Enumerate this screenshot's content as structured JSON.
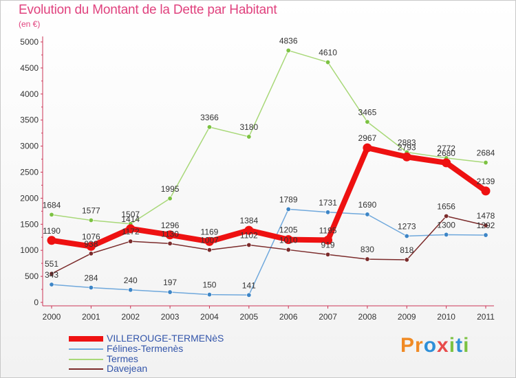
{
  "header": {
    "title": "Evolution du Montant de la Dette par Habitant",
    "subtitle": "(en €)"
  },
  "brand": {
    "logo_text": "Proxiti",
    "letters": [
      {
        "char": "P",
        "color": "#f08a24"
      },
      {
        "char": "r",
        "color": "#f08a24"
      },
      {
        "char": "o",
        "color": "#2e8fd8"
      },
      {
        "char": "x",
        "color": "#e84b4b"
      },
      {
        "char": "i",
        "color": "#7cc242"
      },
      {
        "char": "t",
        "color": "#2e8fd8"
      },
      {
        "char": "i",
        "color": "#7cc242"
      }
    ]
  },
  "chart_data": {
    "type": "line",
    "title": "Evolution du Montant de la Dette par Habitant",
    "subtitle": "(en €)",
    "x": [
      "2000",
      "2001",
      "2002",
      "2003",
      "2004",
      "2005",
      "2006",
      "2007",
      "2008",
      "2009",
      "2010",
      "2011"
    ],
    "ylim": [
      0,
      5000
    ],
    "yticks": [
      0,
      500,
      1000,
      1500,
      2000,
      2500,
      3000,
      3500,
      4000,
      4500,
      5000
    ],
    "grid": false,
    "legend_position": "bottom-left",
    "series": [
      {
        "name": "VILLEROUGE-TERMENèS",
        "color": "#ee1111",
        "marker": "#ee1111",
        "values": [
          1190,
          1076,
          1414,
          1296,
          1169,
          1384,
          1205,
          1195,
          2967,
          2793,
          2680,
          2139
        ]
      },
      {
        "name": "Félines-Termenès",
        "color": "#6fa8dc",
        "marker": "#3d85c6",
        "values": [
          343,
          284,
          240,
          197,
          150,
          141,
          1789,
          1731,
          1690,
          1273,
          1300,
          1292
        ]
      },
      {
        "name": "Termes",
        "color": "#a8d878",
        "marker": "#7cc242",
        "values": [
          1684,
          1577,
          1507,
          1995,
          3366,
          3180,
          4836,
          4610,
          3465,
          2883,
          2772,
          2684
        ]
      },
      {
        "name": "Davejean",
        "color": "#7b2b2b",
        "marker": "#7b2b2b",
        "values": [
          551,
          938,
          1172,
          1130,
          1007,
          1102,
          1010,
          919,
          830,
          818,
          1656,
          1478
        ]
      }
    ]
  }
}
